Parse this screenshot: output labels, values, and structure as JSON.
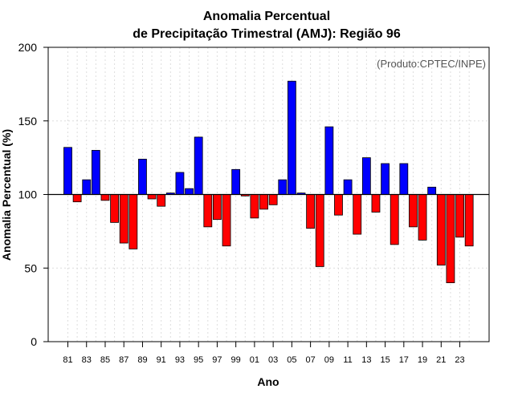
{
  "chart_data": {
    "type": "bar",
    "title_line1": "Anomalia Percentual",
    "title_line2": "de Precipitação Trimestral (AMJ): Região 96",
    "xlabel": "Ano",
    "ylabel": "Anomalia Percentual (%)",
    "annotation": "(Produto:CPTEC/INPE)",
    "ylim": [
      0,
      200
    ],
    "yticks": [
      "0",
      "50",
      "100",
      "150",
      "200"
    ],
    "baseline": 100,
    "grid": true,
    "years": [
      1981,
      1982,
      1983,
      1984,
      1985,
      1986,
      1987,
      1988,
      1989,
      1990,
      1991,
      1992,
      1993,
      1994,
      1995,
      1996,
      1997,
      1998,
      1999,
      2000,
      2001,
      2002,
      2003,
      2004,
      2005,
      2006,
      2007,
      2008,
      2009,
      2010,
      2011,
      2012,
      2013,
      2014,
      2015,
      2016,
      2017,
      2018,
      2019,
      2020,
      2021,
      2022,
      2023,
      2024
    ],
    "xtick_labels": [
      "81",
      "83",
      "85",
      "87",
      "89",
      "91",
      "93",
      "95",
      "97",
      "99",
      "01",
      "03",
      "05",
      "07",
      "09",
      "11",
      "13",
      "15",
      "17",
      "19",
      "21",
      "23"
    ],
    "values": [
      132,
      95,
      110,
      130,
      96,
      81,
      67,
      63,
      124,
      97,
      92,
      101,
      115,
      104,
      139,
      78,
      83,
      65,
      117,
      99,
      84,
      90,
      93,
      110,
      177,
      101,
      77,
      51,
      146,
      86,
      110,
      73,
      125,
      88,
      121,
      66,
      121,
      78,
      69,
      105,
      52,
      40,
      71,
      65
    ],
    "colors": {
      "above": "#0000ff",
      "below": "#ff0000",
      "bar_edge": "#000000",
      "baseline": "#000000"
    }
  }
}
